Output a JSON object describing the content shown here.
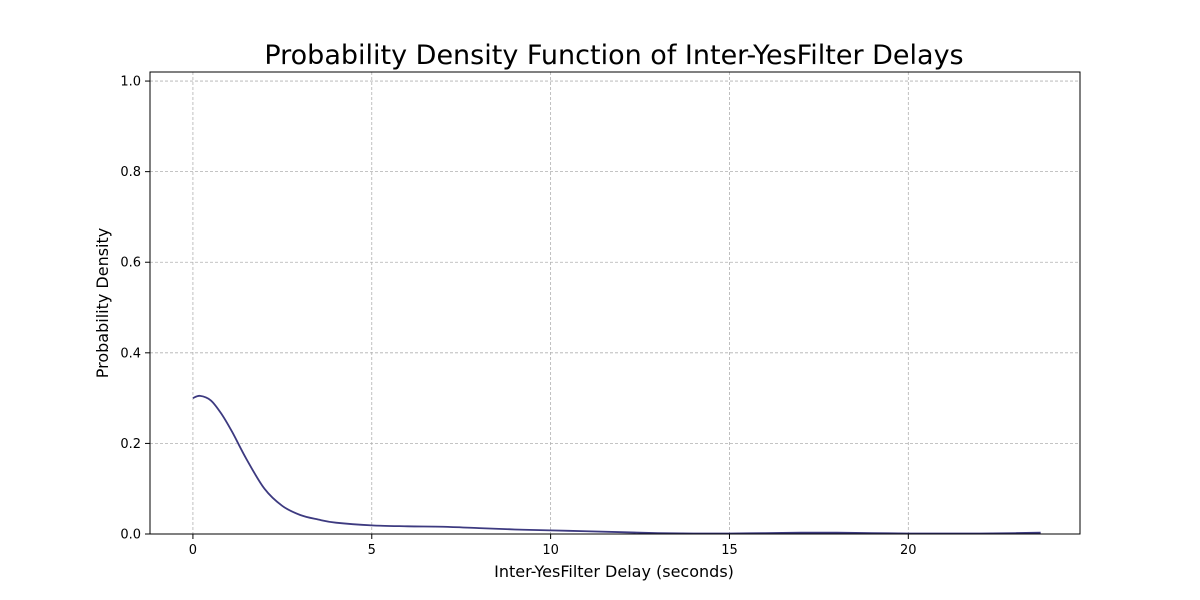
{
  "chart_data": {
    "type": "line",
    "title": "Probability Density Function of Inter-YesFilter Delays",
    "xlabel": "Inter-YesFilter Delay (seconds)",
    "ylabel": "Probability Density",
    "xlim": [
      -1.2,
      24.8
    ],
    "ylim": [
      0,
      1.02
    ],
    "xticks": [
      0,
      5,
      10,
      15,
      20
    ],
    "yticks": [
      0.0,
      0.2,
      0.4,
      0.6,
      0.8,
      1.0
    ],
    "ytick_labels": [
      "0.0",
      "0.2",
      "0.4",
      "0.6",
      "0.8",
      "1.0"
    ],
    "grid": true,
    "series": [
      {
        "color": "#3d3a80",
        "x": [
          0,
          0.2,
          0.5,
          0.8,
          1.1,
          1.5,
          2.0,
          2.5,
          3.0,
          3.5,
          4.0,
          5.0,
          6.0,
          7.0,
          8.0,
          9.0,
          10.0,
          11.0,
          12.0,
          13.0,
          14.0,
          15.0,
          16.0,
          17.0,
          18.0,
          19.0,
          20.0,
          21.0,
          22.0,
          23.0,
          23.7
        ],
        "y": [
          0.3,
          0.305,
          0.295,
          0.265,
          0.225,
          0.165,
          0.1,
          0.062,
          0.042,
          0.032,
          0.025,
          0.019,
          0.017,
          0.016,
          0.013,
          0.01,
          0.008,
          0.006,
          0.004,
          0.002,
          0.001,
          0.001,
          0.002,
          0.003,
          0.003,
          0.002,
          0.001,
          0.001,
          0.001,
          0.002,
          0.003
        ]
      }
    ]
  }
}
